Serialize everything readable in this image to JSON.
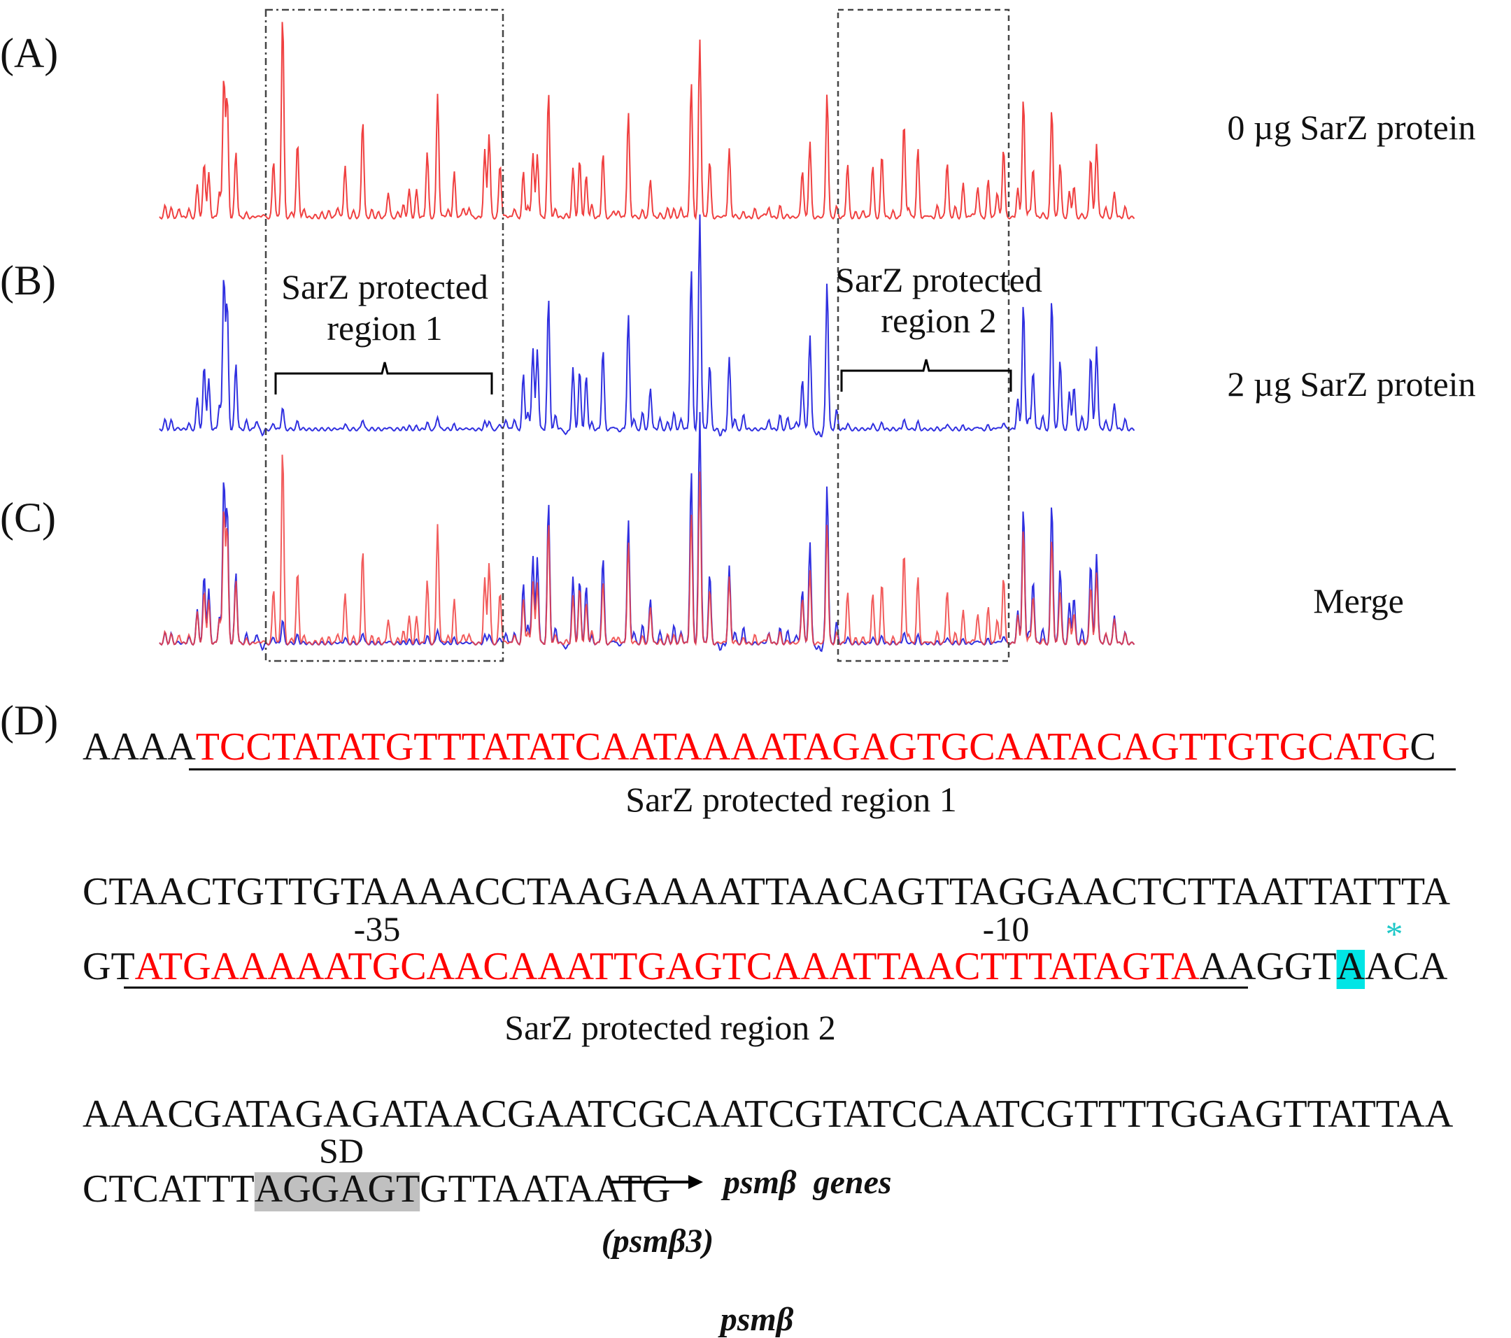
{
  "panels": [
    {
      "label": "(A)",
      "caption": "0 µg SarZ protein"
    },
    {
      "label": "(B)",
      "caption": "2 µg SarZ protein"
    },
    {
      "label": "(C)",
      "caption": "Merge"
    }
  ],
  "protected_regions": [
    {
      "line1": "SarZ protected",
      "line2": "region 1"
    },
    {
      "line1": "SarZ protected",
      "line2": "region 2"
    }
  ],
  "sequence": {
    "label": "(D)",
    "lines": [
      [
        {
          "text": "AAAA"
        },
        {
          "text": "TCCTATATGTTTATATCAATAAAATAGAGTGCAATACAGTTGTGCATG",
          "color": "#ff0000"
        },
        {
          "text": "C"
        }
      ],
      [
        {
          "text": "CTAACTGTTGTAAAACCTAAGAAAATTAACAGTTAGGAACTCTTAATTATTTA"
        }
      ],
      [
        {
          "text": "GT"
        },
        {
          "text": "ATGAAAAATGCAACAAATTGAGTCAAATTAACTTTATAGTA",
          "color": "#ff0000"
        },
        {
          "text": "AAGGT"
        },
        {
          "text": "A",
          "highlight": "#00e5e5"
        },
        {
          "text": "ACA"
        }
      ],
      [
        {
          "text": "AAACGATAGAGATAACGAATCGCAATCGTATCCAATCGTTTTGGAGTTATTAA"
        }
      ],
      [
        {
          "text": "CTCATTT"
        },
        {
          "text": "AGGAGT",
          "highlight": "#c0c0c0"
        },
        {
          "text": "GTTAATA"
        },
        {
          "text": "ATG"
        }
      ]
    ],
    "region1_label": "SarZ protected region 1",
    "region2_label": "SarZ protected region 2",
    "minus35": "-35",
    "minus10": "-10",
    "tss_mark": "*",
    "sd": "SD",
    "genes": "psmβ  genes",
    "start_gene": "(psmβ3)",
    "footer": "psmβ"
  }
}
